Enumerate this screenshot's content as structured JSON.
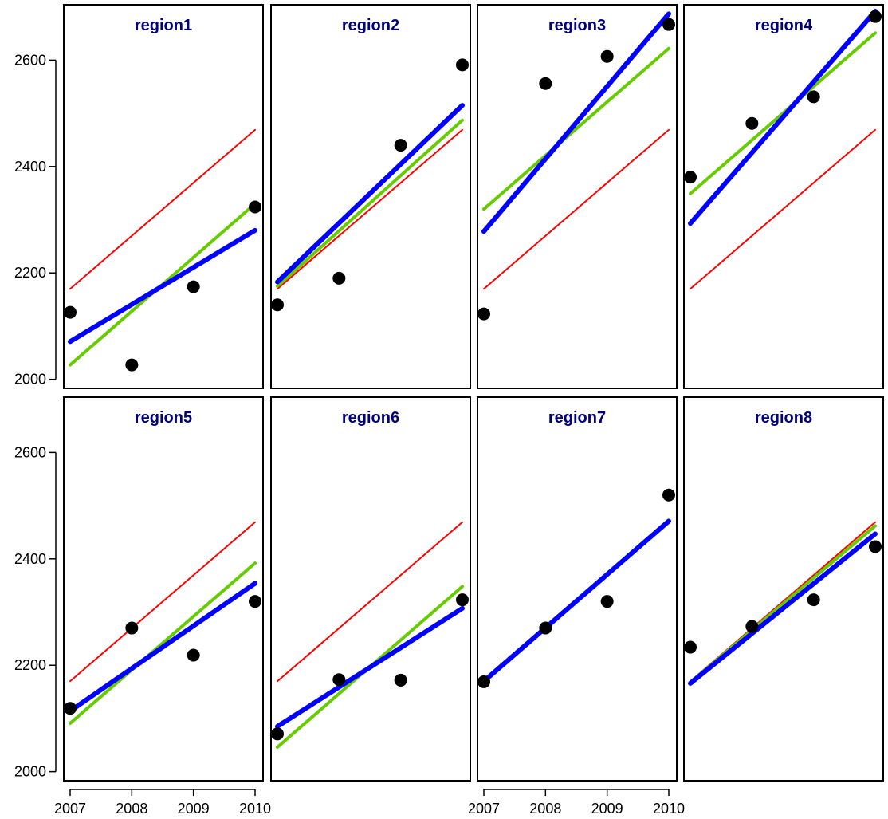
{
  "chart_data": {
    "type": "scatter",
    "x_ticks": [
      2007,
      2008,
      2009,
      2010
    ],
    "y_ticks": [
      2000,
      2200,
      2400,
      2600
    ],
    "xlim": [
      2006.98,
      2010.02
    ],
    "ylim": [
      1983,
      2704
    ],
    "colors": {
      "points": "#000000",
      "red_line": "#ff0000",
      "green_line": "#66cc00",
      "blue_line": "#0000ff",
      "title": "#000080",
      "frame": "#000000"
    },
    "panels": [
      {
        "title": "region1",
        "points": [
          [
            2007,
            2126
          ],
          [
            2008,
            2027
          ],
          [
            2009,
            2174
          ],
          [
            2010,
            2324
          ]
        ],
        "red": [
          [
            2007,
            2170
          ],
          [
            2010,
            2469
          ]
        ],
        "green": [
          [
            2007,
            2027
          ],
          [
            2010,
            2330
          ]
        ],
        "blue": [
          [
            2007,
            2071
          ],
          [
            2010,
            2280
          ]
        ]
      },
      {
        "title": "region2",
        "points": [
          [
            2007,
            2140
          ],
          [
            2008,
            2190
          ],
          [
            2009,
            2440
          ],
          [
            2010,
            2591
          ]
        ],
        "red": [
          [
            2007,
            2170
          ],
          [
            2010,
            2469
          ]
        ],
        "green": [
          [
            2007,
            2175
          ],
          [
            2010,
            2487
          ]
        ],
        "blue": [
          [
            2007,
            2183
          ],
          [
            2010,
            2515
          ]
        ]
      },
      {
        "title": "region3",
        "points": [
          [
            2007,
            2123
          ],
          [
            2008,
            2556
          ],
          [
            2009,
            2607
          ],
          [
            2010,
            2667
          ]
        ],
        "red": [
          [
            2007,
            2170
          ],
          [
            2010,
            2469
          ]
        ],
        "green": [
          [
            2007,
            2320
          ],
          [
            2010,
            2622
          ]
        ],
        "blue": [
          [
            2007,
            2278
          ],
          [
            2010,
            2687
          ]
        ]
      },
      {
        "title": "region4",
        "points": [
          [
            2007,
            2380
          ],
          [
            2008,
            2481
          ],
          [
            2009,
            2531
          ],
          [
            2010,
            2682
          ]
        ],
        "red": [
          [
            2007,
            2170
          ],
          [
            2010,
            2469
          ]
        ],
        "green": [
          [
            2007,
            2349
          ],
          [
            2010,
            2651
          ]
        ],
        "blue": [
          [
            2007,
            2293
          ],
          [
            2010,
            2692
          ]
        ]
      },
      {
        "title": "region5",
        "points": [
          [
            2007,
            2119
          ],
          [
            2008,
            2270
          ],
          [
            2009,
            2219
          ],
          [
            2010,
            2320
          ]
        ],
        "red": [
          [
            2007,
            2170
          ],
          [
            2010,
            2469
          ]
        ],
        "green": [
          [
            2007,
            2091
          ],
          [
            2010,
            2392
          ]
        ],
        "blue": [
          [
            2007,
            2114
          ],
          [
            2010,
            2354
          ]
        ]
      },
      {
        "title": "region6",
        "points": [
          [
            2007,
            2071
          ],
          [
            2008,
            2173
          ],
          [
            2009,
            2172
          ],
          [
            2010,
            2323
          ]
        ],
        "red": [
          [
            2007,
            2170
          ],
          [
            2010,
            2469
          ]
        ],
        "green": [
          [
            2007,
            2046
          ],
          [
            2010,
            2348
          ]
        ],
        "blue": [
          [
            2007,
            2085
          ],
          [
            2010,
            2307
          ]
        ]
      },
      {
        "title": "region7",
        "points": [
          [
            2007,
            2169
          ],
          [
            2008,
            2270
          ],
          [
            2009,
            2320
          ],
          [
            2010,
            2520
          ]
        ],
        "red": [
          [
            2007,
            2170
          ],
          [
            2010,
            2469
          ]
        ],
        "green": [
          [
            2007,
            2170
          ],
          [
            2010,
            2469
          ]
        ],
        "blue": [
          [
            2007,
            2170
          ],
          [
            2010,
            2471
          ]
        ]
      },
      {
        "title": "region8",
        "points": [
          [
            2007,
            2234
          ],
          [
            2008,
            2273
          ],
          [
            2009,
            2323
          ],
          [
            2010,
            2423
          ]
        ],
        "red": [
          [
            2007,
            2170
          ],
          [
            2010,
            2469
          ]
        ],
        "green": [
          [
            2007,
            2168
          ],
          [
            2010,
            2462
          ]
        ],
        "blue": [
          [
            2007,
            2166
          ],
          [
            2010,
            2447
          ]
        ]
      }
    ]
  }
}
